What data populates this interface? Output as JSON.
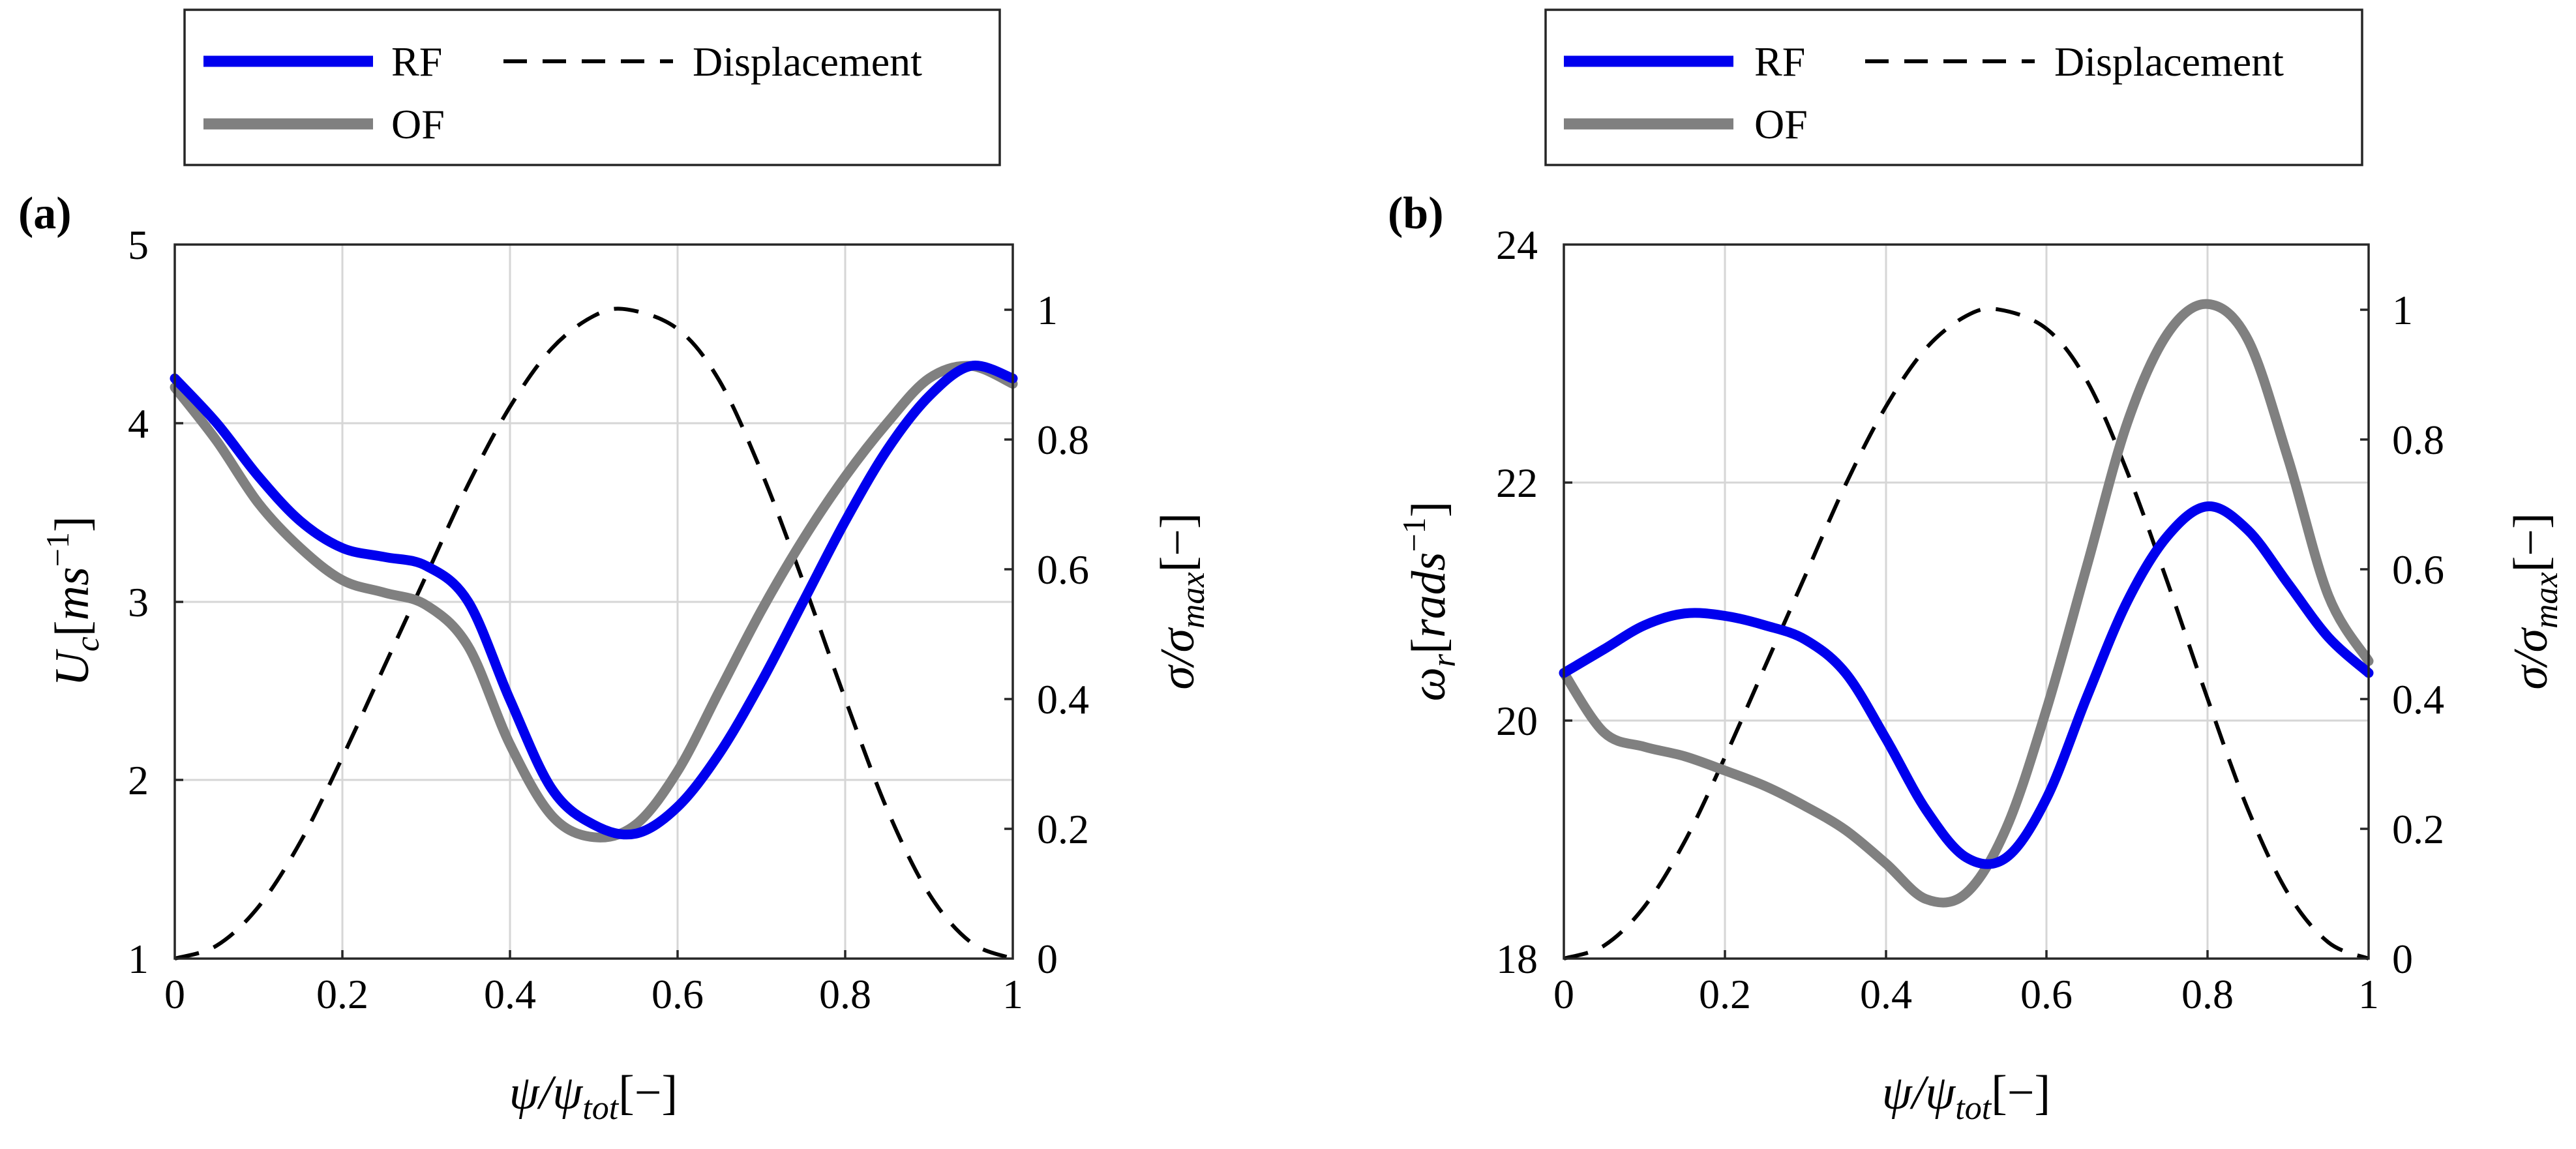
{
  "chart_data": [
    {
      "panel_label": "(a)",
      "type": "line",
      "xlabel": "ψ/ψ_tot[−]",
      "ylabel_left": "U_c[ms^-1]",
      "ylabel_right": "σ/σ_max[−]",
      "xlim": [
        0,
        1
      ],
      "ylim_left": [
        1,
        5
      ],
      "ylim_right": [
        0,
        1.1
      ],
      "xticks": [
        "0",
        "0.2",
        "0.4",
        "0.6",
        "0.8",
        "1"
      ],
      "yticks_left": [
        "1",
        "2",
        "3",
        "4",
        "5"
      ],
      "yticks_right": [
        "0",
        "0.2",
        "0.4",
        "0.6",
        "0.8",
        "1"
      ],
      "grid": true,
      "legend": {
        "placement": "above",
        "entries": [
          "RF",
          "Displacement",
          "OF"
        ]
      },
      "series": [
        {
          "name": "RF",
          "color": "#0000ee",
          "style": "solid",
          "axis": "left",
          "x": [
            0,
            0.05,
            0.1,
            0.15,
            0.2,
            0.25,
            0.3,
            0.35,
            0.4,
            0.45,
            0.5,
            0.55,
            0.6,
            0.65,
            0.7,
            0.75,
            0.8,
            0.85,
            0.9,
            0.95,
            1
          ],
          "y": [
            4.25,
            4.0,
            3.7,
            3.45,
            3.3,
            3.25,
            3.2,
            3.0,
            2.45,
            1.95,
            1.75,
            1.7,
            1.85,
            2.15,
            2.55,
            3.0,
            3.45,
            3.85,
            4.15,
            4.32,
            4.25
          ]
        },
        {
          "name": "OF",
          "color": "#808080",
          "style": "solid",
          "axis": "left",
          "x": [
            0,
            0.05,
            0.1,
            0.15,
            0.2,
            0.25,
            0.3,
            0.35,
            0.4,
            0.45,
            0.5,
            0.55,
            0.6,
            0.65,
            0.7,
            0.75,
            0.8,
            0.85,
            0.9,
            0.95,
            1
          ],
          "y": [
            4.2,
            3.9,
            3.55,
            3.3,
            3.12,
            3.05,
            2.98,
            2.75,
            2.2,
            1.8,
            1.68,
            1.75,
            2.05,
            2.5,
            2.95,
            3.35,
            3.7,
            4.0,
            4.25,
            4.32,
            4.22
          ]
        },
        {
          "name": "Displacement",
          "color": "#000000",
          "style": "dashed",
          "axis": "right",
          "x": [
            0,
            0.05,
            0.1,
            0.15,
            0.2,
            0.25,
            0.3,
            0.35,
            0.4,
            0.45,
            0.5,
            0.54,
            0.6,
            0.65,
            0.7,
            0.75,
            0.8,
            0.85,
            0.9,
            0.95,
            1
          ],
          "y": [
            0,
            0.02,
            0.08,
            0.18,
            0.31,
            0.45,
            0.59,
            0.73,
            0.85,
            0.94,
            0.99,
            1.0,
            0.97,
            0.89,
            0.75,
            0.58,
            0.4,
            0.23,
            0.1,
            0.025,
            0
          ]
        }
      ]
    },
    {
      "panel_label": "(b)",
      "type": "line",
      "xlabel": "ψ/ψ_tot[−]",
      "ylabel_left": "ω_r[rads^-1]",
      "ylabel_right": "σ/σ_max[−]",
      "xlim": [
        0,
        1
      ],
      "ylim_left": [
        18,
        24
      ],
      "ylim_right": [
        0,
        1.1
      ],
      "xticks": [
        "0",
        "0.2",
        "0.4",
        "0.6",
        "0.8",
        "1"
      ],
      "yticks_left": [
        "18",
        "20",
        "22",
        "24"
      ],
      "yticks_right": [
        "0",
        "0.2",
        "0.4",
        "0.6",
        "0.8",
        "1"
      ],
      "grid": true,
      "legend": {
        "placement": "above",
        "entries": [
          "RF",
          "Displacement",
          "OF"
        ]
      },
      "series": [
        {
          "name": "RF",
          "color": "#0000ee",
          "style": "solid",
          "axis": "left",
          "x": [
            0,
            0.05,
            0.1,
            0.15,
            0.2,
            0.25,
            0.3,
            0.35,
            0.4,
            0.45,
            0.5,
            0.55,
            0.6,
            0.65,
            0.7,
            0.75,
            0.8,
            0.85,
            0.9,
            0.95,
            1
          ],
          "y": [
            20.4,
            20.6,
            20.8,
            20.9,
            20.88,
            20.8,
            20.68,
            20.4,
            19.85,
            19.25,
            18.85,
            18.85,
            19.35,
            20.2,
            21.0,
            21.55,
            21.8,
            21.6,
            21.15,
            20.7,
            20.4
          ]
        },
        {
          "name": "OF",
          "color": "#808080",
          "style": "solid",
          "axis": "left",
          "x": [
            0,
            0.05,
            0.1,
            0.15,
            0.2,
            0.25,
            0.3,
            0.35,
            0.4,
            0.45,
            0.5,
            0.55,
            0.6,
            0.65,
            0.7,
            0.75,
            0.8,
            0.85,
            0.9,
            0.95,
            1
          ],
          "y": [
            20.4,
            19.9,
            19.78,
            19.7,
            19.58,
            19.45,
            19.28,
            19.08,
            18.8,
            18.5,
            18.55,
            19.1,
            20.1,
            21.3,
            22.5,
            23.25,
            23.5,
            23.2,
            22.2,
            21.05,
            20.5
          ]
        },
        {
          "name": "Displacement",
          "color": "#000000",
          "style": "dashed",
          "axis": "right",
          "x": [
            0,
            0.05,
            0.1,
            0.15,
            0.2,
            0.25,
            0.3,
            0.35,
            0.4,
            0.45,
            0.5,
            0.54,
            0.6,
            0.65,
            0.7,
            0.75,
            0.8,
            0.85,
            0.9,
            0.95,
            1
          ],
          "y": [
            0,
            0.02,
            0.08,
            0.18,
            0.31,
            0.45,
            0.59,
            0.73,
            0.85,
            0.94,
            0.99,
            1.0,
            0.97,
            0.89,
            0.75,
            0.58,
            0.4,
            0.23,
            0.1,
            0.025,
            0
          ]
        }
      ]
    }
  ]
}
